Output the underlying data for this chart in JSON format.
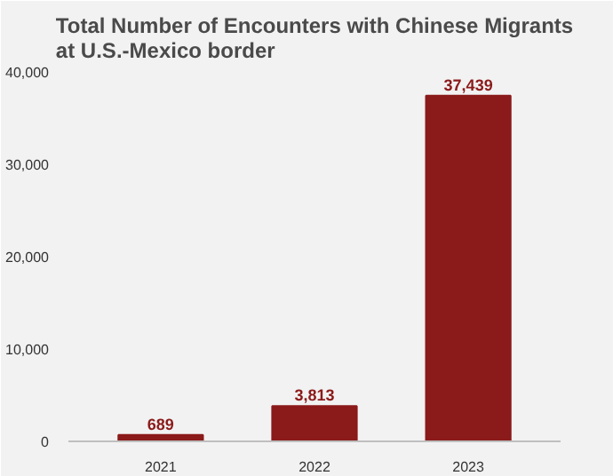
{
  "chart_data": {
    "type": "bar",
    "title": "Total Number of Encounters with Chinese Migrants\nat U.S.-Mexico border",
    "categories": [
      "2021",
      "2022",
      "2023"
    ],
    "values": [
      689,
      3813,
      37439
    ],
    "color": "#8b1a1a",
    "ylim": [
      0,
      40000
    ],
    "yticks": [
      {
        "value": 0,
        "label": "0"
      },
      {
        "value": 10000,
        "label": "10,000"
      },
      {
        "value": 20000,
        "label": "20,000"
      },
      {
        "value": 30000,
        "label": "30,000"
      },
      {
        "value": 40000,
        "label": "40,000"
      }
    ],
    "data_labels": true,
    "value_labels": [
      "689",
      "3,813",
      "37,439"
    ],
    "grid": false
  }
}
